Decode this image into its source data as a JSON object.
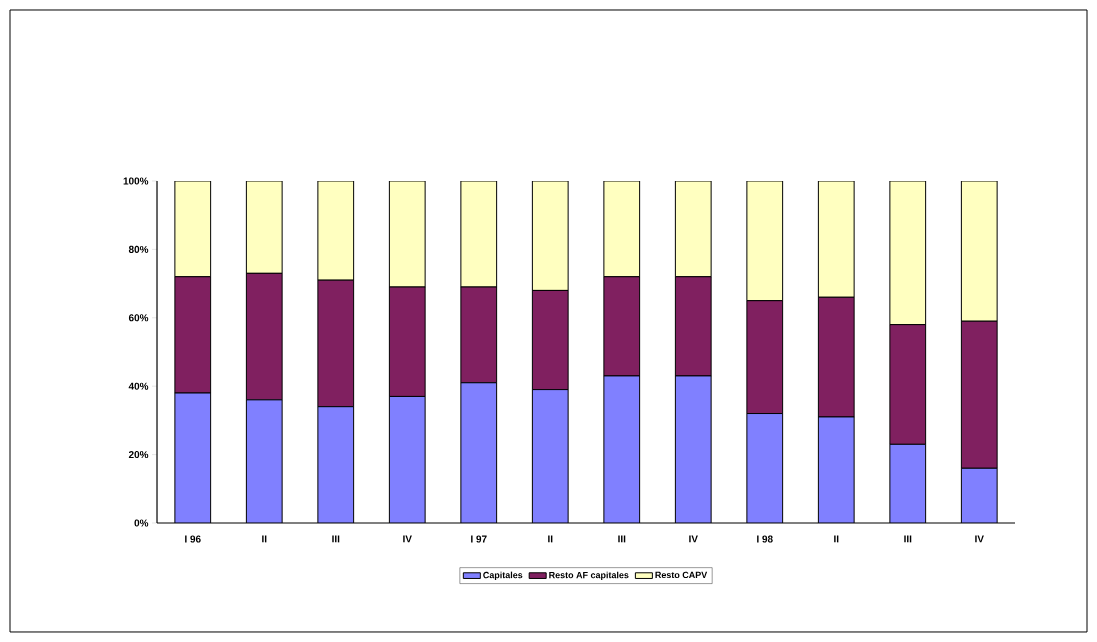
{
  "chart_data": {
    "type": "bar",
    "stacked": true,
    "categories": [
      "I 96",
      "II",
      "III",
      "IV",
      "I 97",
      "II",
      "III",
      "IV",
      "I 98",
      "II",
      "III",
      "IV"
    ],
    "series": [
      {
        "name": "Capitales",
        "color": "#8080ff",
        "values": [
          38,
          36,
          34,
          37,
          41,
          39,
          43,
          43,
          32,
          31,
          23,
          16
        ]
      },
      {
        "name": "Resto AF capitales",
        "color": "#802060",
        "values": [
          34,
          37,
          37,
          32,
          28,
          29,
          29,
          29,
          33,
          35,
          35,
          43
        ]
      },
      {
        "name": "Resto CAPV",
        "color": "#ffffc0",
        "values": [
          28,
          27,
          29,
          31,
          31,
          32,
          28,
          28,
          35,
          34,
          42,
          41
        ]
      }
    ],
    "ylim": [
      0,
      100
    ],
    "yticks": [
      {
        "value": 0,
        "label": "0%"
      },
      {
        "value": 20,
        "label": "20%"
      },
      {
        "value": 40,
        "label": "40%"
      },
      {
        "value": 60,
        "label": "60%"
      },
      {
        "value": 80,
        "label": "80%"
      },
      {
        "value": 100,
        "label": "100%"
      }
    ],
    "legend": "bottom",
    "grid": false
  }
}
